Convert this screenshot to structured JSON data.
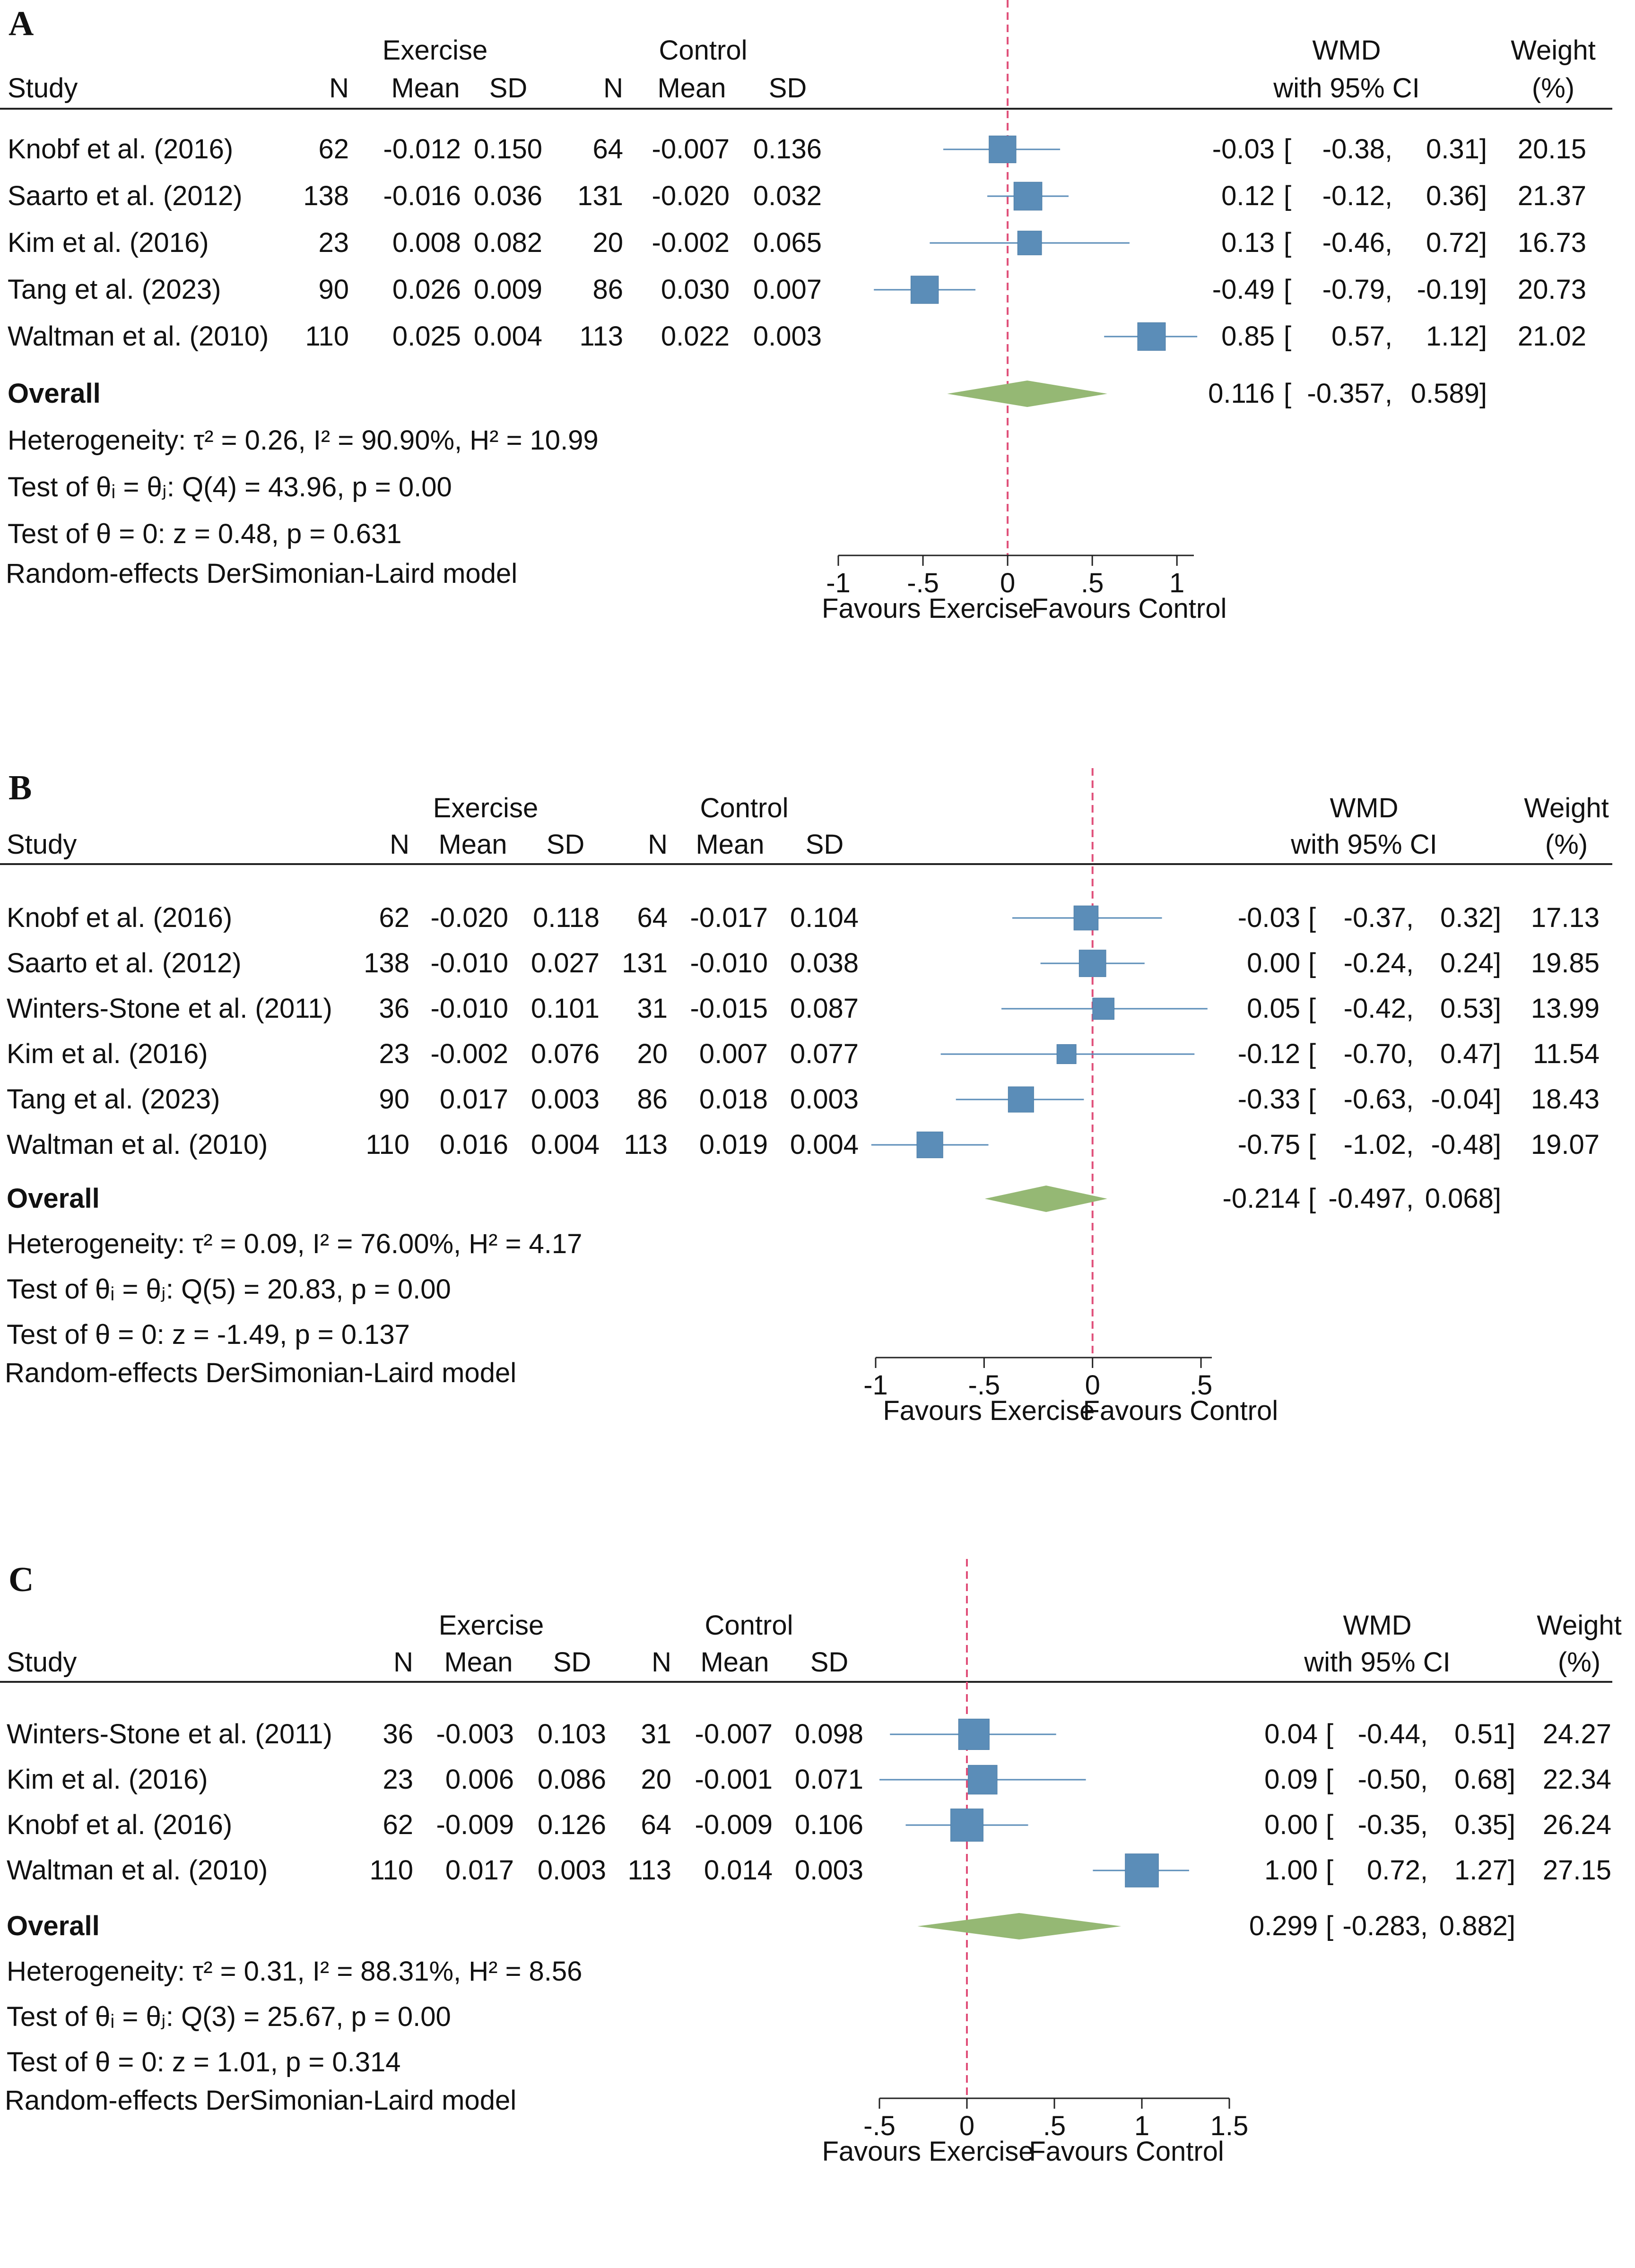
{
  "colors": {
    "box": "#5b8db8",
    "ci_line": "#5b8db8",
    "diamond": "#95b874",
    "zero_line": "#e0507a",
    "axis": "#222222"
  },
  "chart_data": [
    {
      "type": "forest",
      "panel_label": "A",
      "headers": {
        "study": "Study",
        "exercise": "Exercise",
        "control": "Control",
        "n": "N",
        "mean": "Mean",
        "sd": "SD",
        "wmd": "WMD",
        "ci": "with 95% CI",
        "weight": "Weight",
        "weight_unit": "(%)"
      },
      "xlim": [
        -1,
        1.1
      ],
      "ticks": [
        -1,
        -0.5,
        0,
        0.5,
        1
      ],
      "tick_labels": [
        "-1",
        "-.5",
        "0",
        ".5",
        "1"
      ],
      "favours_left": "Favours Exercise",
      "favours_right": "Favours Control",
      "studies": [
        {
          "name": "Knobf et al. (2016)",
          "ex_n": "62",
          "ex_mean": "-0.012",
          "ex_sd": "0.150",
          "ctl_n": "64",
          "ctl_mean": "-0.007",
          "ctl_sd": "0.136",
          "wmd_text": "-0.03",
          "lo_text": "-0.38,",
          "hi_text": "0.31]",
          "weight_text": "20.15",
          "wmd": -0.03,
          "lo": -0.38,
          "hi": 0.31,
          "weight": 20.15
        },
        {
          "name": "Saarto et al. (2012)",
          "ex_n": "138",
          "ex_mean": "-0.016",
          "ex_sd": "0.036",
          "ctl_n": "131",
          "ctl_mean": "-0.020",
          "ctl_sd": "0.032",
          "wmd_text": "0.12",
          "lo_text": "-0.12,",
          "hi_text": "0.36]",
          "weight_text": "21.37",
          "wmd": 0.12,
          "lo": -0.12,
          "hi": 0.36,
          "weight": 21.37
        },
        {
          "name": "Kim et al. (2016)",
          "ex_n": "23",
          "ex_mean": "0.008",
          "ex_sd": "0.082",
          "ctl_n": "20",
          "ctl_mean": "-0.002",
          "ctl_sd": "0.065",
          "wmd_text": "0.13",
          "lo_text": "-0.46,",
          "hi_text": "0.72]",
          "weight_text": "16.73",
          "wmd": 0.13,
          "lo": -0.46,
          "hi": 0.72,
          "weight": 16.73
        },
        {
          "name": "Tang et al. (2023)",
          "ex_n": "90",
          "ex_mean": "0.026",
          "ex_sd": "0.009",
          "ctl_n": "86",
          "ctl_mean": "0.030",
          "ctl_sd": "0.007",
          "wmd_text": "-0.49",
          "lo_text": "-0.79,",
          "hi_text": "-0.19]",
          "weight_text": "20.73",
          "wmd": -0.49,
          "lo": -0.79,
          "hi": -0.19,
          "weight": 20.73
        },
        {
          "name": "Waltman et al. (2010)",
          "ex_n": "110",
          "ex_mean": "0.025",
          "ex_sd": "0.004",
          "ctl_n": "113",
          "ctl_mean": "0.022",
          "ctl_sd": "0.003",
          "wmd_text": "0.85",
          "lo_text": "0.57,",
          "hi_text": "1.12]",
          "weight_text": "21.02",
          "wmd": 0.85,
          "lo": 0.57,
          "hi": 1.12,
          "weight": 21.02
        }
      ],
      "overall": {
        "label": "Overall",
        "wmd_text": "0.116",
        "lo_text": "-0.357,",
        "hi_text": "0.589]",
        "wmd": 0.116,
        "lo": -0.357,
        "hi": 0.589
      },
      "heterogeneity": "Heterogeneity: τ² = 0.26, I² = 90.90%, H² = 10.99",
      "test_q": "Test of θᵢ = θⱼ: Q(4) = 43.96, p = 0.00",
      "test_z": "Test of θ = 0: z = 0.48, p = 0.631",
      "model": "Random-effects DerSimonian-Laird model"
    },
    {
      "type": "forest",
      "panel_label": "B",
      "headers": {
        "study": "Study",
        "exercise": "Exercise",
        "control": "Control",
        "n": "N",
        "mean": "Mean",
        "sd": "SD",
        "wmd": "WMD",
        "ci": "with 95% CI",
        "weight": "Weight",
        "weight_unit": "(%)"
      },
      "xlim": [
        -1,
        0.55
      ],
      "ticks": [
        -1,
        -0.5,
        0,
        0.5
      ],
      "tick_labels": [
        "-1",
        "-.5",
        "0",
        ".5"
      ],
      "favours_left": "Favours Exercise",
      "favours_right": "Favours Control",
      "studies": [
        {
          "name": "Knobf et al. (2016)",
          "ex_n": "62",
          "ex_mean": "-0.020",
          "ex_sd": "0.118",
          "ctl_n": "64",
          "ctl_mean": "-0.017",
          "ctl_sd": "0.104",
          "wmd_text": "-0.03",
          "lo_text": "-0.37,",
          "hi_text": "0.32]",
          "weight_text": "17.13",
          "wmd": -0.03,
          "lo": -0.37,
          "hi": 0.32,
          "weight": 17.13
        },
        {
          "name": "Saarto et al. (2012)",
          "ex_n": "138",
          "ex_mean": "-0.010",
          "ex_sd": "0.027",
          "ctl_n": "131",
          "ctl_mean": "-0.010",
          "ctl_sd": "0.038",
          "wmd_text": "0.00",
          "lo_text": "-0.24,",
          "hi_text": "0.24]",
          "weight_text": "19.85",
          "wmd": 0.0,
          "lo": -0.24,
          "hi": 0.24,
          "weight": 19.85
        },
        {
          "name": "Winters-Stone et al. (2011)",
          "ex_n": "36",
          "ex_mean": "-0.010",
          "ex_sd": "0.101",
          "ctl_n": "31",
          "ctl_mean": "-0.015",
          "ctl_sd": "0.087",
          "wmd_text": "0.05",
          "lo_text": "-0.42,",
          "hi_text": "0.53]",
          "weight_text": "13.99",
          "wmd": 0.05,
          "lo": -0.42,
          "hi": 0.53,
          "weight": 13.99
        },
        {
          "name": "Kim et al. (2016)",
          "ex_n": "23",
          "ex_mean": "-0.002",
          "ex_sd": "0.076",
          "ctl_n": "20",
          "ctl_mean": "0.007",
          "ctl_sd": "0.077",
          "wmd_text": "-0.12",
          "lo_text": "-0.70,",
          "hi_text": "0.47]",
          "weight_text": "11.54",
          "wmd": -0.12,
          "lo": -0.7,
          "hi": 0.47,
          "weight": 11.54
        },
        {
          "name": "Tang et al. (2023)",
          "ex_n": "90",
          "ex_mean": "0.017",
          "ex_sd": "0.003",
          "ctl_n": "86",
          "ctl_mean": "0.018",
          "ctl_sd": "0.003",
          "wmd_text": "-0.33",
          "lo_text": "-0.63,",
          "hi_text": "-0.04]",
          "weight_text": "18.43",
          "wmd": -0.33,
          "lo": -0.63,
          "hi": -0.04,
          "weight": 18.43
        },
        {
          "name": "Waltman et al. (2010)",
          "ex_n": "110",
          "ex_mean": "0.016",
          "ex_sd": "0.004",
          "ctl_n": "113",
          "ctl_mean": "0.019",
          "ctl_sd": "0.004",
          "wmd_text": "-0.75",
          "lo_text": "-1.02,",
          "hi_text": "-0.48]",
          "weight_text": "19.07",
          "wmd": -0.75,
          "lo": -1.02,
          "hi": -0.48,
          "weight": 19.07
        }
      ],
      "overall": {
        "label": "Overall",
        "wmd_text": "-0.214",
        "lo_text": "-0.497,",
        "hi_text": "0.068]",
        "wmd": -0.214,
        "lo": -0.497,
        "hi": 0.068
      },
      "heterogeneity": "Heterogeneity: τ² = 0.09, I² = 76.00%, H² = 4.17",
      "test_q": "Test of θᵢ = θⱼ: Q(5) = 20.83, p = 0.00",
      "test_z": "Test of θ = 0: z = -1.49, p = 0.137",
      "model": "Random-effects DerSimonian-Laird model"
    },
    {
      "type": "forest",
      "panel_label": "C",
      "headers": {
        "study": "Study",
        "exercise": "Exercise",
        "control": "Control",
        "n": "N",
        "mean": "Mean",
        "sd": "SD",
        "wmd": "WMD",
        "ci": "with 95% CI",
        "weight": "Weight",
        "weight_unit": "(%)"
      },
      "xlim": [
        -0.5,
        1.5
      ],
      "ticks": [
        -0.5,
        0,
        0.5,
        1,
        1.5
      ],
      "tick_labels": [
        "-.5",
        "0",
        ".5",
        "1",
        "1.5"
      ],
      "favours_left": "Favours Exercise",
      "favours_right": "Favours Control",
      "studies": [
        {
          "name": "Winters-Stone et al. (2011)",
          "ex_n": "36",
          "ex_mean": "-0.003",
          "ex_sd": "0.103",
          "ctl_n": "31",
          "ctl_mean": "-0.007",
          "ctl_sd": "0.098",
          "wmd_text": "0.04",
          "lo_text": "-0.44,",
          "hi_text": "0.51]",
          "weight_text": "24.27",
          "wmd": 0.04,
          "lo": -0.44,
          "hi": 0.51,
          "weight": 24.27
        },
        {
          "name": "Kim et al. (2016)",
          "ex_n": "23",
          "ex_mean": "0.006",
          "ex_sd": "0.086",
          "ctl_n": "20",
          "ctl_mean": "-0.001",
          "ctl_sd": "0.071",
          "wmd_text": "0.09",
          "lo_text": "-0.50,",
          "hi_text": "0.68]",
          "weight_text": "22.34",
          "wmd": 0.09,
          "lo": -0.5,
          "hi": 0.68,
          "weight": 22.34
        },
        {
          "name": "Knobf et al. (2016)",
          "ex_n": "62",
          "ex_mean": "-0.009",
          "ex_sd": "0.126",
          "ctl_n": "64",
          "ctl_mean": "-0.009",
          "ctl_sd": "0.106",
          "wmd_text": "0.00",
          "lo_text": "-0.35,",
          "hi_text": "0.35]",
          "weight_text": "26.24",
          "wmd": 0.0,
          "lo": -0.35,
          "hi": 0.35,
          "weight": 26.24
        },
        {
          "name": "Waltman et al. (2010)",
          "ex_n": "110",
          "ex_mean": "0.017",
          "ex_sd": "0.003",
          "ctl_n": "113",
          "ctl_mean": "0.014",
          "ctl_sd": "0.003",
          "wmd_text": "1.00",
          "lo_text": "0.72,",
          "hi_text": "1.27]",
          "weight_text": "27.15",
          "wmd": 1.0,
          "lo": 0.72,
          "hi": 1.27,
          "weight": 27.15
        }
      ],
      "overall": {
        "label": "Overall",
        "wmd_text": "0.299",
        "lo_text": "-0.283,",
        "hi_text": "0.882]",
        "wmd": 0.299,
        "lo": -0.283,
        "hi": 0.882
      },
      "heterogeneity": "Heterogeneity: τ² = 0.31, I² = 88.31%, H² = 8.56",
      "test_q": "Test of θᵢ = θⱼ: Q(3) = 25.67, p = 0.00",
      "test_z": "Test of θ = 0: z = 1.01, p = 0.314",
      "model": "Random-effects DerSimonian-Laird model"
    }
  ]
}
